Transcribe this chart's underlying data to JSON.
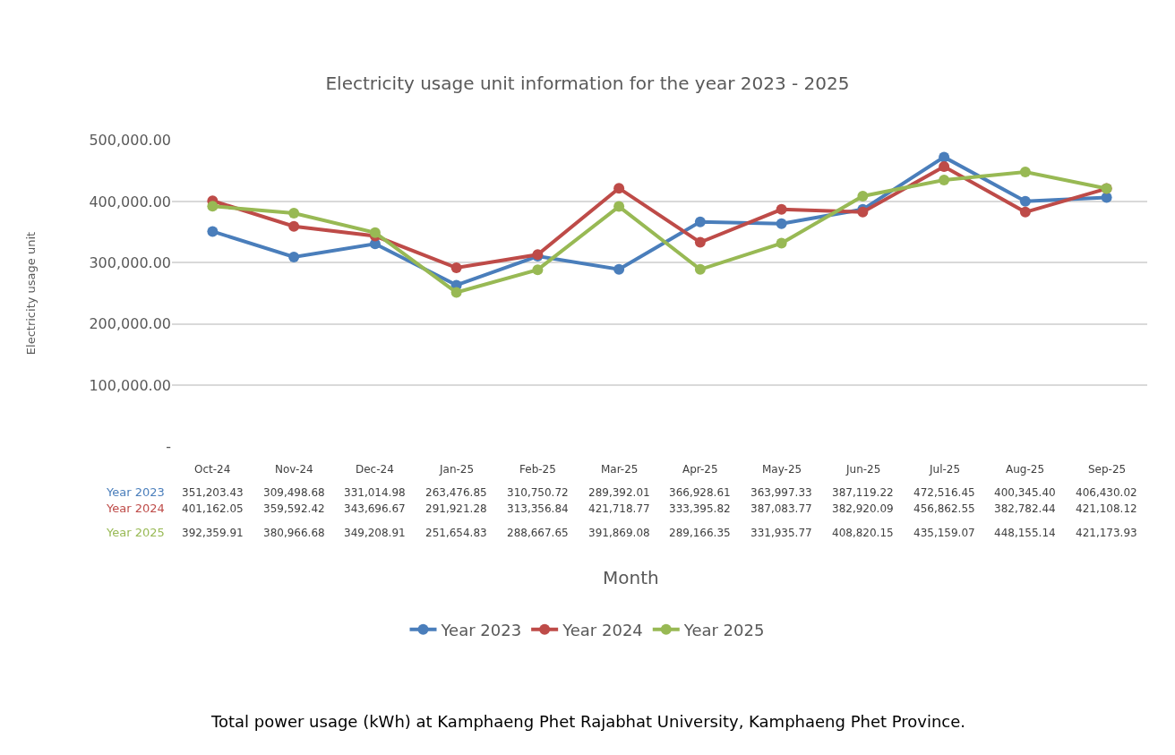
{
  "chart_data": {
    "type": "line",
    "title": "Electricity usage unit information for the year 2023 - 2025",
    "ylabel": "Electricity usage unit",
    "categories": [
      "Oct-24",
      "Nov-24",
      "Dec-24",
      "Jan-25",
      "Feb-25",
      "Mar-25",
      "Apr-25",
      "May-25",
      "Jun-25",
      "Jul-25",
      "Aug-25",
      "Sep-25"
    ],
    "series": [
      {
        "name": "Year 2023",
        "color": "#4a7ebb",
        "values": [
          351203.43,
          309498.68,
          331014.98,
          263476.85,
          310750.72,
          289392.01,
          366928.61,
          363997.33,
          387119.22,
          472516.45,
          400345.4,
          406430.02
        ],
        "value_labels": [
          "351,203.43",
          "309,498.68",
          "331,014.98",
          "263,476.85",
          "310,750.72",
          "289,392.01",
          "366,928.61",
          "363,997.33",
          "387,119.22",
          "472,516.45",
          "400,345.40",
          "406,430.02"
        ]
      },
      {
        "name": "Year 2024",
        "color": "#be4b48",
        "values": [
          401162.05,
          359592.42,
          343696.67,
          291921.28,
          313356.84,
          421718.77,
          333395.82,
          387083.77,
          382920.09,
          456862.55,
          382782.44,
          421108.12
        ],
        "value_labels": [
          "401,162.05",
          "359,592.42",
          "343,696.67",
          "291,921.28",
          "313,356.84",
          "421,718.77",
          "333,395.82",
          "387,083.77",
          "382,920.09",
          "456,862.55",
          "382,782.44",
          "421,108.12"
        ]
      },
      {
        "name": "Year 2025",
        "color": "#98b954",
        "values": [
          392359.91,
          380966.68,
          349208.91,
          251654.83,
          288667.65,
          391869.08,
          289166.35,
          331935.77,
          408820.15,
          435159.07,
          448155.14,
          421173.93
        ],
        "value_labels": [
          "392,359.91",
          "380,966.68",
          "349,208.91",
          "251,654.83",
          "288,667.65",
          "391,869.08",
          "289,166.35",
          "331,935.77",
          "408,820.15",
          "435,159.07",
          "448,155.14",
          "421,173.93"
        ]
      }
    ],
    "ylim": [
      0,
      500000
    ],
    "yticks": [
      {
        "value": 0,
        "label": "-"
      },
      {
        "value": 100000,
        "label": "100,000.00"
      },
      {
        "value": 200000,
        "label": "200,000.00"
      },
      {
        "value": 300000,
        "label": "300,000.00"
      },
      {
        "value": 400000,
        "label": "400,000.00"
      },
      {
        "value": 500000,
        "label": "500,000.00"
      }
    ],
    "grid": "y",
    "legend": "bottom",
    "marker": "circle",
    "line_style": "solid",
    "annotations": [
      "Month",
      "Total power usage (kWh) at Kamphaeng Phet Rajabhat University, Kamphaeng Phet Province."
    ]
  }
}
